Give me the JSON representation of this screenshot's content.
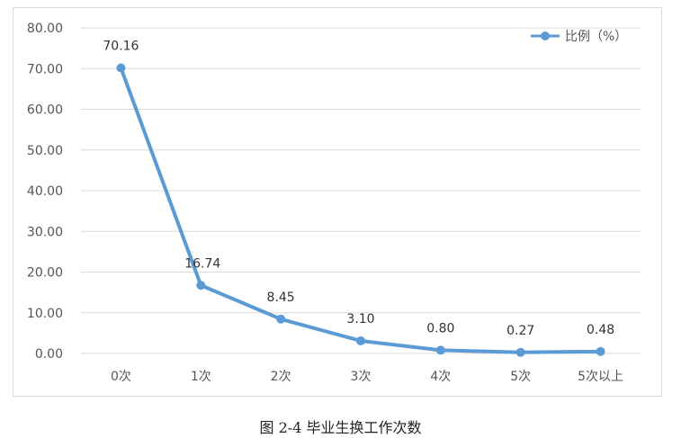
{
  "chart_data": {
    "type": "line",
    "categories": [
      "0次",
      "1次",
      "2次",
      "3次",
      "4次",
      "5次",
      "5次以上"
    ],
    "series": [
      {
        "name": "比例（%）",
        "values": [
          70.16,
          16.74,
          8.45,
          3.1,
          0.8,
          0.27,
          0.48
        ]
      }
    ],
    "data_labels": [
      "70.16",
      "16.74",
      "8.45",
      "3.10",
      "0.80",
      "0.27",
      "0.48"
    ],
    "yticks": [
      "0.00",
      "10.00",
      "20.00",
      "30.00",
      "40.00",
      "50.00",
      "60.00",
      "70.00",
      "80.00"
    ],
    "ylim": [
      0,
      80
    ],
    "grid": true,
    "legend_position": "top-right",
    "line_color": "#5b9bd5",
    "grid_color": "#d9d9d9"
  },
  "caption": "图 2-4  毕业生换工作次数"
}
